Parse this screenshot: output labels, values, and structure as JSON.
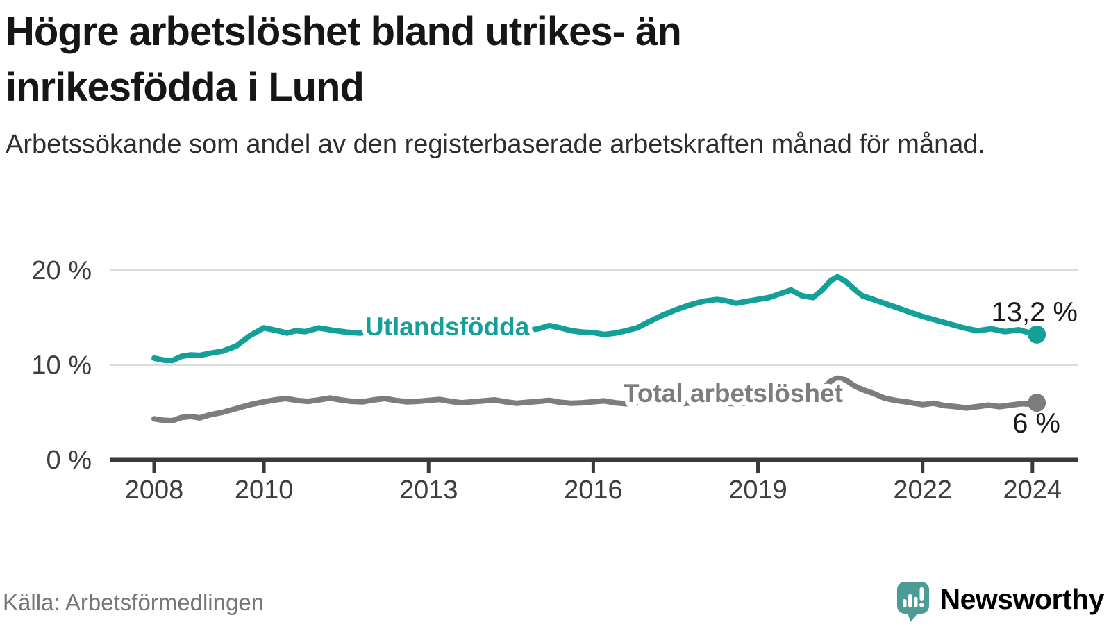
{
  "header": {
    "title": "Högre arbetslöshet bland utrikes- än inrikesfödda i Lund",
    "subtitle": "Arbetssökande som andel av den registerbaserade arbetskraften månad för månad."
  },
  "chart_data": {
    "type": "line",
    "title": "Högre arbetslöshet bland utrikes- än inrikesfödda i Lund",
    "unit": "%",
    "x_axis": {
      "ticks": [
        2008,
        2010,
        2013,
        2016,
        2019,
        2022,
        2024
      ],
      "labels": [
        "2008",
        "2010",
        "2013",
        "2016",
        "2019",
        "2022",
        "2024"
      ],
      "range": [
        2007.2,
        2024.8
      ]
    },
    "y_axis": {
      "ticks": [
        {
          "value": 0,
          "label": "0 %"
        },
        {
          "value": 10,
          "label": "10 %"
        },
        {
          "value": 20,
          "label": "20 %"
        }
      ],
      "range": [
        0,
        21.5
      ],
      "gridlines": true
    },
    "styles": {
      "grid_color": "#dcdcdc",
      "axis_color": "#3a3a3a",
      "tick_label_color": "#3d3d3d",
      "value_label_color": "#1a1a1a",
      "halo_color": "#ffffff"
    },
    "series": [
      {
        "name": "Utlandsfödda",
        "color": "#13a098",
        "end_value": 13.2,
        "end_label": "13,2 %",
        "label_anchor": {
          "year": 2013.34,
          "value": 13.1
        },
        "end_label_pos": {
          "x": 1552,
          "y": 457
        },
        "points": [
          [
            2008.0,
            10.7
          ],
          [
            2008.17,
            10.5
          ],
          [
            2008.33,
            10.45
          ],
          [
            2008.5,
            10.9
          ],
          [
            2008.67,
            11.05
          ],
          [
            2008.83,
            11.0
          ],
          [
            2009.0,
            11.2
          ],
          [
            2009.25,
            11.45
          ],
          [
            2009.5,
            12.0
          ],
          [
            2009.75,
            13.1
          ],
          [
            2010.0,
            13.9
          ],
          [
            2010.25,
            13.6
          ],
          [
            2010.42,
            13.35
          ],
          [
            2010.58,
            13.6
          ],
          [
            2010.75,
            13.5
          ],
          [
            2011.0,
            13.9
          ],
          [
            2011.25,
            13.65
          ],
          [
            2011.5,
            13.45
          ],
          [
            2011.75,
            13.35
          ],
          [
            2012.0,
            13.55
          ],
          [
            2012.25,
            13.4
          ],
          [
            2012.5,
            13.25
          ],
          [
            2012.75,
            13.4
          ],
          [
            2013.0,
            13.5
          ],
          [
            2013.25,
            13.35
          ],
          [
            2013.5,
            13.25
          ],
          [
            2013.75,
            13.4
          ],
          [
            2014.0,
            13.5
          ],
          [
            2014.25,
            13.4
          ],
          [
            2014.5,
            13.5
          ],
          [
            2014.75,
            13.6
          ],
          [
            2015.0,
            13.8
          ],
          [
            2015.2,
            14.15
          ],
          [
            2015.4,
            13.9
          ],
          [
            2015.6,
            13.6
          ],
          [
            2015.8,
            13.45
          ],
          [
            2016.0,
            13.4
          ],
          [
            2016.2,
            13.2
          ],
          [
            2016.4,
            13.35
          ],
          [
            2016.6,
            13.6
          ],
          [
            2016.8,
            13.9
          ],
          [
            2017.0,
            14.5
          ],
          [
            2017.25,
            15.2
          ],
          [
            2017.5,
            15.8
          ],
          [
            2017.75,
            16.3
          ],
          [
            2018.0,
            16.7
          ],
          [
            2018.25,
            16.9
          ],
          [
            2018.4,
            16.8
          ],
          [
            2018.6,
            16.5
          ],
          [
            2018.8,
            16.7
          ],
          [
            2019.0,
            16.9
          ],
          [
            2019.2,
            17.1
          ],
          [
            2019.4,
            17.5
          ],
          [
            2019.6,
            17.9
          ],
          [
            2019.8,
            17.3
          ],
          [
            2020.0,
            17.1
          ],
          [
            2020.17,
            17.9
          ],
          [
            2020.33,
            18.9
          ],
          [
            2020.45,
            19.3
          ],
          [
            2020.6,
            18.8
          ],
          [
            2020.75,
            18.0
          ],
          [
            2020.9,
            17.3
          ],
          [
            2021.1,
            16.9
          ],
          [
            2021.3,
            16.5
          ],
          [
            2021.5,
            16.1
          ],
          [
            2021.75,
            15.6
          ],
          [
            2022.0,
            15.1
          ],
          [
            2022.25,
            14.7
          ],
          [
            2022.5,
            14.3
          ],
          [
            2022.75,
            13.9
          ],
          [
            2023.0,
            13.6
          ],
          [
            2023.25,
            13.8
          ],
          [
            2023.5,
            13.5
          ],
          [
            2023.75,
            13.7
          ],
          [
            2024.0,
            13.3
          ],
          [
            2024.08,
            13.2
          ]
        ]
      },
      {
        "name": "Total arbetslöshet",
        "color": "#7d7d7d",
        "end_value": 6.0,
        "end_label": "6 %",
        "label_anchor": {
          "year": 2018.55,
          "value": 6.08
        },
        "end_label_pos": {
          "x": 1527,
          "y": 617
        },
        "points": [
          [
            2008.0,
            4.3
          ],
          [
            2008.17,
            4.15
          ],
          [
            2008.33,
            4.1
          ],
          [
            2008.5,
            4.45
          ],
          [
            2008.67,
            4.55
          ],
          [
            2008.83,
            4.4
          ],
          [
            2009.0,
            4.7
          ],
          [
            2009.25,
            5.0
          ],
          [
            2009.5,
            5.4
          ],
          [
            2009.75,
            5.8
          ],
          [
            2010.0,
            6.1
          ],
          [
            2010.2,
            6.3
          ],
          [
            2010.4,
            6.45
          ],
          [
            2010.6,
            6.25
          ],
          [
            2010.8,
            6.15
          ],
          [
            2011.0,
            6.3
          ],
          [
            2011.2,
            6.5
          ],
          [
            2011.4,
            6.3
          ],
          [
            2011.6,
            6.15
          ],
          [
            2011.8,
            6.1
          ],
          [
            2012.0,
            6.3
          ],
          [
            2012.2,
            6.45
          ],
          [
            2012.4,
            6.25
          ],
          [
            2012.6,
            6.1
          ],
          [
            2012.8,
            6.15
          ],
          [
            2013.0,
            6.25
          ],
          [
            2013.2,
            6.35
          ],
          [
            2013.4,
            6.15
          ],
          [
            2013.6,
            6.0
          ],
          [
            2013.8,
            6.1
          ],
          [
            2014.0,
            6.2
          ],
          [
            2014.2,
            6.3
          ],
          [
            2014.4,
            6.1
          ],
          [
            2014.6,
            5.95
          ],
          [
            2014.8,
            6.05
          ],
          [
            2015.0,
            6.15
          ],
          [
            2015.2,
            6.25
          ],
          [
            2015.4,
            6.05
          ],
          [
            2015.6,
            5.95
          ],
          [
            2015.8,
            6.0
          ],
          [
            2016.0,
            6.1
          ],
          [
            2016.2,
            6.2
          ],
          [
            2016.4,
            6.0
          ],
          [
            2016.6,
            5.9
          ],
          [
            2016.8,
            6.0
          ],
          [
            2017.0,
            6.1
          ],
          [
            2017.2,
            6.15
          ],
          [
            2017.4,
            5.95
          ],
          [
            2017.6,
            5.9
          ],
          [
            2017.8,
            6.0
          ],
          [
            2018.0,
            6.1
          ],
          [
            2018.2,
            6.15
          ],
          [
            2018.4,
            5.95
          ],
          [
            2018.6,
            5.9
          ],
          [
            2018.8,
            6.0
          ],
          [
            2019.0,
            6.1
          ],
          [
            2019.2,
            6.2
          ],
          [
            2019.4,
            6.3
          ],
          [
            2019.6,
            6.25
          ],
          [
            2019.8,
            6.15
          ],
          [
            2020.0,
            6.35
          ],
          [
            2020.17,
            7.4
          ],
          [
            2020.33,
            8.3
          ],
          [
            2020.45,
            8.6
          ],
          [
            2020.6,
            8.4
          ],
          [
            2020.75,
            7.8
          ],
          [
            2020.9,
            7.4
          ],
          [
            2021.1,
            7.0
          ],
          [
            2021.3,
            6.5
          ],
          [
            2021.5,
            6.25
          ],
          [
            2021.75,
            6.05
          ],
          [
            2022.0,
            5.8
          ],
          [
            2022.2,
            5.95
          ],
          [
            2022.4,
            5.7
          ],
          [
            2022.6,
            5.6
          ],
          [
            2022.8,
            5.45
          ],
          [
            2023.0,
            5.6
          ],
          [
            2023.2,
            5.75
          ],
          [
            2023.4,
            5.6
          ],
          [
            2023.6,
            5.75
          ],
          [
            2023.8,
            5.9
          ],
          [
            2024.0,
            5.85
          ],
          [
            2024.08,
            6.0
          ]
        ]
      }
    ]
  },
  "footer": {
    "source": "Källa: Arbetsförmedlingen",
    "brand": "Newsworthy",
    "brand_color": "#4b9c96"
  }
}
